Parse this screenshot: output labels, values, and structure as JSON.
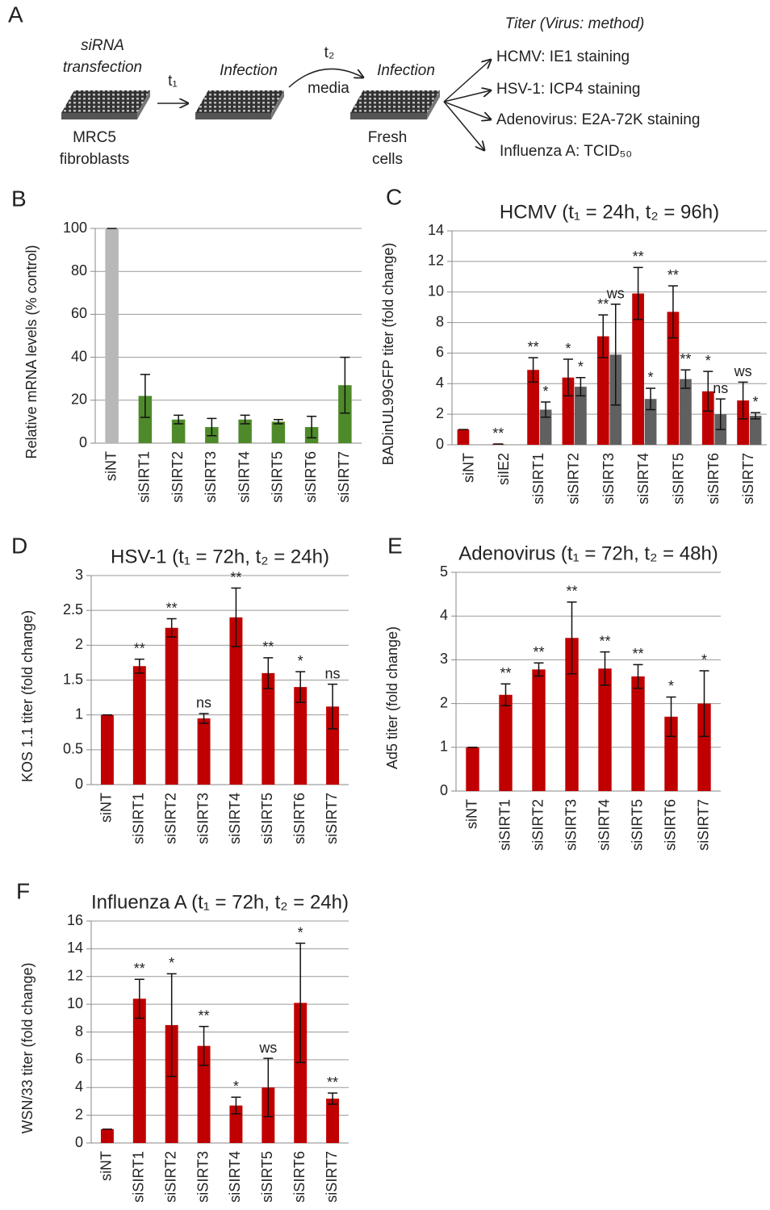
{
  "diagram": {
    "panel": "A",
    "transfection": [
      "siRNA",
      "transfection"
    ],
    "cells_1": [
      "MRC5",
      "fibroblasts"
    ],
    "t1": "t₁",
    "infection_1": "Infection",
    "t2": "t₂",
    "media": "media",
    "infection_2": "Infection",
    "cells_2": [
      "Fresh",
      "cells"
    ],
    "titer_heading": "Titer (Virus: method)",
    "readouts": [
      "HCMV: IE1 staining",
      "HSV-1: ICP4 staining",
      "Adenovirus: E2A-72K staining",
      "Influenza A: TCID₅₀"
    ]
  },
  "chart_data": [
    {
      "type": "bar",
      "panel": "B",
      "ylabel": "Relative mRNA levels (% control)",
      "categories": [
        "siNT",
        "siSIRT1",
        "siSIRT2",
        "siSIRT3",
        "siSIRT4",
        "siSIRT5",
        "siSIRT6",
        "siSIRT7"
      ],
      "series": [
        {
          "colors": [
            "#b8b8b8",
            "#4e8a2a",
            "#4e8a2a",
            "#4e8a2a",
            "#4e8a2a",
            "#4e8a2a",
            "#4e8a2a",
            "#4e8a2a"
          ],
          "values": [
            100,
            22,
            11,
            7.5,
            11,
            10,
            7.5,
            27
          ],
          "errors": [
            0,
            10,
            2,
            4,
            2,
            1,
            5,
            13
          ]
        }
      ],
      "ylim": [
        0,
        100
      ],
      "yticks": [
        0,
        20,
        40,
        60,
        80,
        100
      ],
      "grid": true
    },
    {
      "type": "bar",
      "panel": "C",
      "title": "HCMV (t₁ = 24h, t₂ = 96h)",
      "ylabel": "BADinUL99GFP titer (fold change)",
      "categories": [
        "siNT",
        "siIE2",
        "siSIRT1",
        "siSIRT2",
        "siSIRT3",
        "siSIRT4",
        "siSIRT5",
        "siSIRT6",
        "siSIRT7"
      ],
      "series": [
        {
          "color": "#c00000",
          "values": [
            1,
            0.05,
            4.9,
            4.4,
            7.1,
            9.9,
            8.7,
            3.5,
            2.9
          ],
          "errors": [
            0,
            0,
            0.8,
            1.2,
            1.4,
            1.7,
            1.7,
            1.3,
            1.2
          ],
          "annotations": [
            null,
            "**",
            "**",
            "*",
            "**",
            "**",
            "**",
            "*",
            "ws"
          ]
        },
        {
          "color": "#606060",
          "values": [
            null,
            null,
            2.3,
            3.8,
            5.9,
            3.0,
            4.3,
            2.0,
            1.9
          ],
          "errors": [
            null,
            null,
            0.5,
            0.6,
            3.3,
            0.7,
            0.6,
            1.0,
            0.2
          ],
          "annotations": [
            null,
            null,
            "*",
            "*",
            "ws",
            "*",
            "**",
            "ns",
            "*"
          ]
        }
      ],
      "ylim": [
        0,
        14
      ],
      "yticks": [
        0,
        2,
        4,
        6,
        8,
        10,
        12,
        14
      ],
      "grid": true
    },
    {
      "type": "bar",
      "panel": "D",
      "title": "HSV-1 (t₁ = 72h, t₂ = 24h)",
      "ylabel": "KOS 1.1 titer (fold change)",
      "categories": [
        "siNT",
        "siSIRT1",
        "siSIRT2",
        "siSIRT3",
        "siSIRT4",
        "siSIRT5",
        "siSIRT6",
        "siSIRT7"
      ],
      "series": [
        {
          "color": "#c00000",
          "values": [
            1,
            1.7,
            2.25,
            0.95,
            2.4,
            1.6,
            1.4,
            1.12
          ],
          "errors": [
            0,
            0.1,
            0.13,
            0.07,
            0.42,
            0.22,
            0.22,
            0.32
          ],
          "annotations": [
            null,
            "**",
            "**",
            "ns",
            "**",
            "**",
            "*",
            "ns"
          ]
        }
      ],
      "ylim": [
        0,
        3
      ],
      "yticks": [
        0,
        0.5,
        1,
        1.5,
        2,
        2.5,
        3
      ],
      "grid": true
    },
    {
      "type": "bar",
      "panel": "E",
      "title": "Adenovirus (t₁ = 72h, t₂ = 48h)",
      "ylabel": "Ad5 titer (fold change)",
      "categories": [
        "siNT",
        "siSIRT1",
        "siSIRT2",
        "siSIRT3",
        "siSIRT4",
        "siSIRT5",
        "siSIRT6",
        "siSIRT7"
      ],
      "series": [
        {
          "color": "#c00000",
          "values": [
            1,
            2.2,
            2.78,
            3.5,
            2.8,
            2.62,
            1.7,
            2.0
          ],
          "errors": [
            0,
            0.25,
            0.15,
            0.82,
            0.38,
            0.27,
            0.45,
            0.75
          ],
          "annotations": [
            null,
            "**",
            "**",
            "**",
            "**",
            "**",
            "*",
            "*"
          ]
        }
      ],
      "ylim": [
        0,
        5
      ],
      "yticks": [
        0,
        1,
        2,
        3,
        4,
        5
      ],
      "grid": true
    },
    {
      "type": "bar",
      "panel": "F",
      "title": "Influenza A (t₁ = 72h, t₂ = 24h)",
      "ylabel": "WSN/33 titer (fold change)",
      "categories": [
        "siNT",
        "siSIRT1",
        "siSIRT2",
        "siSIRT3",
        "siSIRT4",
        "siSIRT5",
        "siSIRT6",
        "siSIRT7"
      ],
      "series": [
        {
          "color": "#c00000",
          "values": [
            1,
            10.4,
            8.5,
            7.0,
            2.7,
            4.0,
            10.1,
            3.2
          ],
          "errors": [
            0,
            1.4,
            3.7,
            1.4,
            0.6,
            2.1,
            4.3,
            0.4
          ],
          "annotations": [
            null,
            "**",
            "*",
            "**",
            "*",
            "ws",
            "*",
            "**"
          ]
        }
      ],
      "ylim": [
        0,
        16
      ],
      "yticks": [
        0,
        2,
        4,
        6,
        8,
        10,
        12,
        14,
        16
      ],
      "grid": true
    }
  ]
}
